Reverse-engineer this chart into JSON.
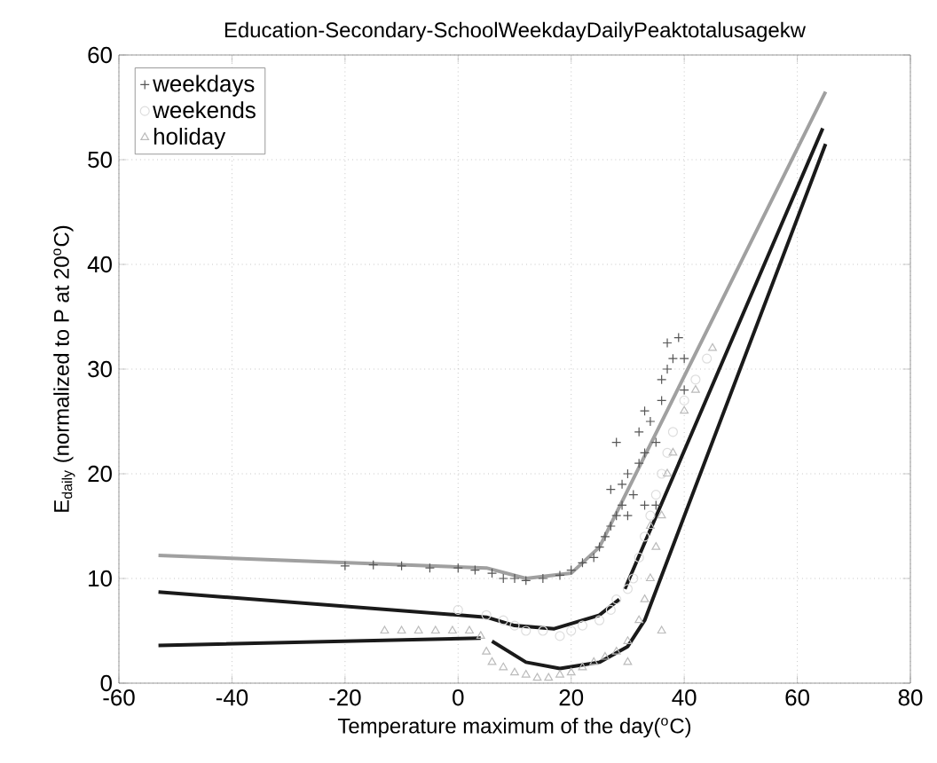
{
  "chart_data": {
    "type": "scatter",
    "title": "Education-Secondary-SchoolWeekdayDailyPeaktotalusagekw",
    "xlabel": "Temperature maximum of the day($^{o}$C)",
    "ylabel": "E$_{daily}$ (normalized to P at 20$^{o}$C)",
    "xlim": [
      -60,
      80
    ],
    "ylim": [
      0,
      60
    ],
    "xticks": [
      -60,
      -40,
      -20,
      0,
      20,
      40,
      60,
      80
    ],
    "yticks": [
      0,
      10,
      20,
      30,
      40,
      50,
      60
    ],
    "grid": true,
    "legend": "top left",
    "series": [
      {
        "name": "weekdays",
        "color": "#555555",
        "marker": "cross",
        "x": [
          -20,
          -15,
          -10,
          -5,
          0,
          3,
          6,
          8,
          10,
          12,
          15,
          18,
          20,
          22,
          24,
          25,
          26,
          27,
          28,
          29,
          29,
          30,
          31,
          32,
          32,
          33,
          33,
          34,
          35,
          36,
          36,
          37,
          38,
          39,
          40,
          40,
          30,
          33,
          35,
          28,
          27,
          37
        ],
        "values": [
          11.2,
          11.3,
          11.2,
          11,
          11,
          10.8,
          10.5,
          10,
          10,
          9.8,
          10,
          10.3,
          10.8,
          11.5,
          12,
          13,
          14,
          15,
          16,
          17,
          19,
          20,
          18,
          21,
          24,
          22,
          26,
          25,
          23,
          27,
          29,
          30,
          31,
          33,
          28,
          31,
          16,
          17,
          17,
          23,
          18.5,
          32.5
        ]
      },
      {
        "name": "weekends",
        "color": "#dddddd",
        "marker": "circle",
        "x": [
          0,
          5,
          8,
          10,
          12,
          15,
          18,
          20,
          22,
          25,
          27,
          28,
          30,
          31,
          32,
          33,
          34,
          35,
          36,
          37,
          38,
          40,
          42,
          44
        ],
        "values": [
          7,
          6.5,
          6,
          5.5,
          5,
          5,
          4.5,
          5,
          5.5,
          6,
          7,
          8,
          9,
          10,
          12,
          14,
          16,
          18,
          20,
          22,
          24,
          27,
          29,
          31
        ]
      },
      {
        "name": "holiday",
        "color": "#bbbbbb",
        "marker": "triangle",
        "x": [
          -13,
          -10,
          -7,
          -4,
          -1,
          2,
          4,
          5,
          6,
          8,
          10,
          12,
          14,
          16,
          18,
          20,
          22,
          24,
          26,
          28,
          30,
          32,
          33,
          34,
          35,
          36,
          37,
          38,
          40,
          42,
          45,
          36,
          34,
          30
        ],
        "values": [
          5,
          5,
          5,
          5,
          5,
          5,
          4.5,
          3,
          2,
          1.5,
          1,
          0.8,
          0.5,
          0.5,
          0.8,
          1,
          1.5,
          2,
          2.5,
          3,
          4,
          6,
          8,
          10,
          13,
          16,
          20,
          22,
          26,
          28,
          32,
          5,
          15,
          2
        ]
      },
      {
        "type": "line",
        "color": "#a0a0a0",
        "marker": "none",
        "x": [
          -53,
          5,
          12,
          20,
          25,
          65
        ],
        "values": [
          12.2,
          11,
          10,
          10.5,
          13,
          56.5
        ]
      },
      {
        "type": "line",
        "color": "#1a1a1a",
        "marker": "none",
        "x": [
          -53,
          5,
          10,
          17,
          25,
          28.5,
          null,
          29.5,
          64.5
        ],
        "values": [
          8.7,
          6.3,
          5.5,
          5.2,
          6.5,
          8,
          null,
          9,
          53
        ]
      },
      {
        "type": "line",
        "color": "#1a1a1a",
        "marker": "none",
        "x": [
          -53,
          4,
          null,
          6,
          12,
          18,
          25,
          30,
          33,
          65
        ],
        "values": [
          3.6,
          4.3,
          null,
          4,
          2,
          1.4,
          2,
          3.5,
          6,
          51.5
        ]
      }
    ]
  }
}
